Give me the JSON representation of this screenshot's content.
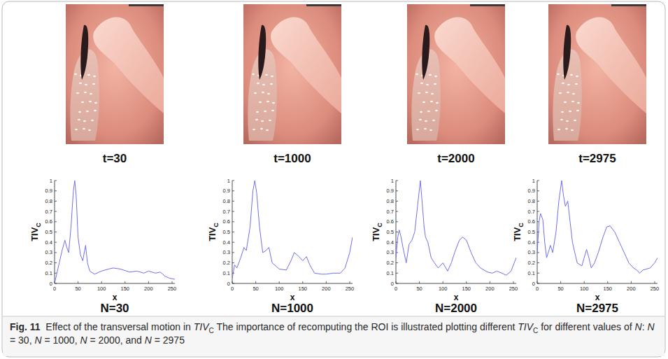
{
  "photos": [
    {
      "label": "t=30"
    },
    {
      "label": "t=1000"
    },
    {
      "label": "t=2000"
    },
    {
      "label": "t=2975"
    }
  ],
  "chart_data": [
    {
      "type": "line",
      "title": "N=30",
      "xlabel": "x",
      "ylabel": "TIV",
      "ylabel_subscript": "C",
      "color": "#6f6ff2",
      "grid": false,
      "xlim": [
        0,
        256
      ],
      "xticks": [
        0,
        50,
        100,
        150,
        200,
        250
      ],
      "ylim": [
        0,
        1
      ],
      "yticks": [
        0,
        0.1,
        0.2,
        0.3,
        0.4,
        0.5,
        0.6,
        0.7,
        0.8,
        0.9,
        1
      ],
      "x": [
        0,
        5,
        10,
        16,
        22,
        26,
        30,
        35,
        40,
        43,
        46,
        50,
        55,
        60,
        66,
        70,
        75,
        85,
        100,
        115,
        125,
        140,
        160,
        175,
        190,
        200,
        215,
        225,
        235,
        245,
        256
      ],
      "values": [
        0,
        0.1,
        0.2,
        0.32,
        0.42,
        0.35,
        0.3,
        0.55,
        0.9,
        1.0,
        0.85,
        0.45,
        0.28,
        0.22,
        0.37,
        0.2,
        0.12,
        0.09,
        0.12,
        0.14,
        0.15,
        0.14,
        0.11,
        0.12,
        0.1,
        0.12,
        0.1,
        0.11,
        0.07,
        0.05,
        0.04
      ]
    },
    {
      "type": "line",
      "title": "N=1000",
      "xlabel": "x",
      "ylabel": "TIV",
      "ylabel_subscript": "C",
      "color": "#6f6ff2",
      "grid": false,
      "xlim": [
        0,
        256
      ],
      "xticks": [
        0,
        50,
        100,
        150,
        200,
        250
      ],
      "ylim": [
        0,
        1
      ],
      "yticks": [
        0,
        0.1,
        0.2,
        0.3,
        0.4,
        0.5,
        0.6,
        0.7,
        0.8,
        0.9,
        1
      ],
      "x": [
        0,
        5,
        10,
        18,
        25,
        30,
        38,
        44,
        48,
        52,
        58,
        65,
        72,
        78,
        85,
        100,
        115,
        125,
        132,
        140,
        150,
        158,
        165,
        175,
        190,
        200,
        215,
        230,
        240,
        250,
        256
      ],
      "values": [
        0.05,
        0.18,
        0.15,
        0.25,
        0.35,
        0.32,
        0.55,
        0.9,
        1.0,
        0.88,
        0.55,
        0.3,
        0.32,
        0.35,
        0.2,
        0.14,
        0.13,
        0.22,
        0.3,
        0.27,
        0.22,
        0.26,
        0.18,
        0.1,
        0.09,
        0.09,
        0.1,
        0.1,
        0.15,
        0.3,
        0.45
      ]
    },
    {
      "type": "line",
      "title": "N=2000",
      "xlabel": "x",
      "ylabel": "TIV",
      "ylabel_subscript": "C",
      "color": "#6f6ff2",
      "grid": false,
      "xlim": [
        0,
        256
      ],
      "xticks": [
        0,
        50,
        100,
        150,
        200,
        250
      ],
      "ylim": [
        0,
        1
      ],
      "yticks": [
        0,
        0.1,
        0.2,
        0.3,
        0.4,
        0.5,
        0.6,
        0.7,
        0.8,
        0.9,
        1
      ],
      "x": [
        0,
        4,
        7,
        11,
        15,
        22,
        28,
        34,
        40,
        46,
        52,
        56,
        60,
        63,
        68,
        75,
        82,
        90,
        100,
        105,
        110,
        118,
        125,
        135,
        142,
        150,
        160,
        170,
        180,
        195,
        205,
        215,
        225,
        235,
        245,
        256
      ],
      "values": [
        0.25,
        0.45,
        0.52,
        0.45,
        0.35,
        0.2,
        0.38,
        0.42,
        0.5,
        0.75,
        1.0,
        0.78,
        0.55,
        0.45,
        0.4,
        0.25,
        0.2,
        0.15,
        0.2,
        0.16,
        0.12,
        0.2,
        0.3,
        0.42,
        0.45,
        0.42,
        0.3,
        0.2,
        0.15,
        0.11,
        0.1,
        0.12,
        0.1,
        0.08,
        0.12,
        0.25
      ]
    },
    {
      "type": "line",
      "title": "N=2975",
      "xlabel": "x",
      "ylabel": "TIV",
      "ylabel_subscript": "C",
      "color": "#6f6ff2",
      "grid": false,
      "xlim": [
        0,
        256
      ],
      "xticks": [
        0,
        50,
        100,
        150,
        200,
        250
      ],
      "ylim": [
        0,
        1
      ],
      "yticks": [
        0,
        0.1,
        0.2,
        0.3,
        0.4,
        0.5,
        0.6,
        0.7,
        0.8,
        0.9,
        1
      ],
      "x": [
        0,
        4,
        7,
        12,
        16,
        20,
        25,
        28,
        33,
        40,
        46,
        52,
        56,
        60,
        65,
        70,
        75,
        85,
        95,
        100,
        105,
        110,
        115,
        122,
        130,
        140,
        148,
        155,
        165,
        175,
        185,
        195,
        205,
        212,
        218,
        225,
        240,
        250,
        256
      ],
      "values": [
        0.3,
        0.6,
        0.68,
        0.62,
        0.4,
        0.25,
        0.32,
        0.37,
        0.3,
        0.5,
        0.8,
        1.0,
        0.85,
        0.75,
        0.8,
        0.6,
        0.4,
        0.2,
        0.17,
        0.25,
        0.33,
        0.25,
        0.15,
        0.2,
        0.3,
        0.45,
        0.55,
        0.56,
        0.5,
        0.4,
        0.3,
        0.2,
        0.15,
        0.13,
        0.1,
        0.13,
        0.15,
        0.2,
        0.25
      ]
    }
  ],
  "caption": {
    "runs": [
      {
        "text": "Fig. 11",
        "style": "bold"
      },
      {
        "text": "  Effect of the transversal motion in ",
        "style": "plain"
      },
      {
        "text": "TIV",
        "style": "italic"
      },
      {
        "text": "C",
        "style": "sub"
      },
      {
        "text": " The importance of recomputing the ROI is illustrated plotting different ",
        "style": "plain"
      },
      {
        "text": "TIV",
        "style": "italic"
      },
      {
        "text": "C",
        "style": "sub"
      },
      {
        "text": " for different values of ",
        "style": "plain"
      },
      {
        "text": "N",
        "style": "italic"
      },
      {
        "text": ": ",
        "style": "plain"
      },
      {
        "text": "N",
        "style": "italic"
      },
      {
        "text": " = 30, ",
        "style": "plain"
      },
      {
        "text": "N",
        "style": "italic"
      },
      {
        "text": " = 1000, ",
        "style": "plain"
      },
      {
        "text": "N",
        "style": "italic"
      },
      {
        "text": " = 2000, and ",
        "style": "plain"
      },
      {
        "text": "N",
        "style": "italic"
      },
      {
        "text": " = 2975",
        "style": "plain"
      }
    ]
  }
}
